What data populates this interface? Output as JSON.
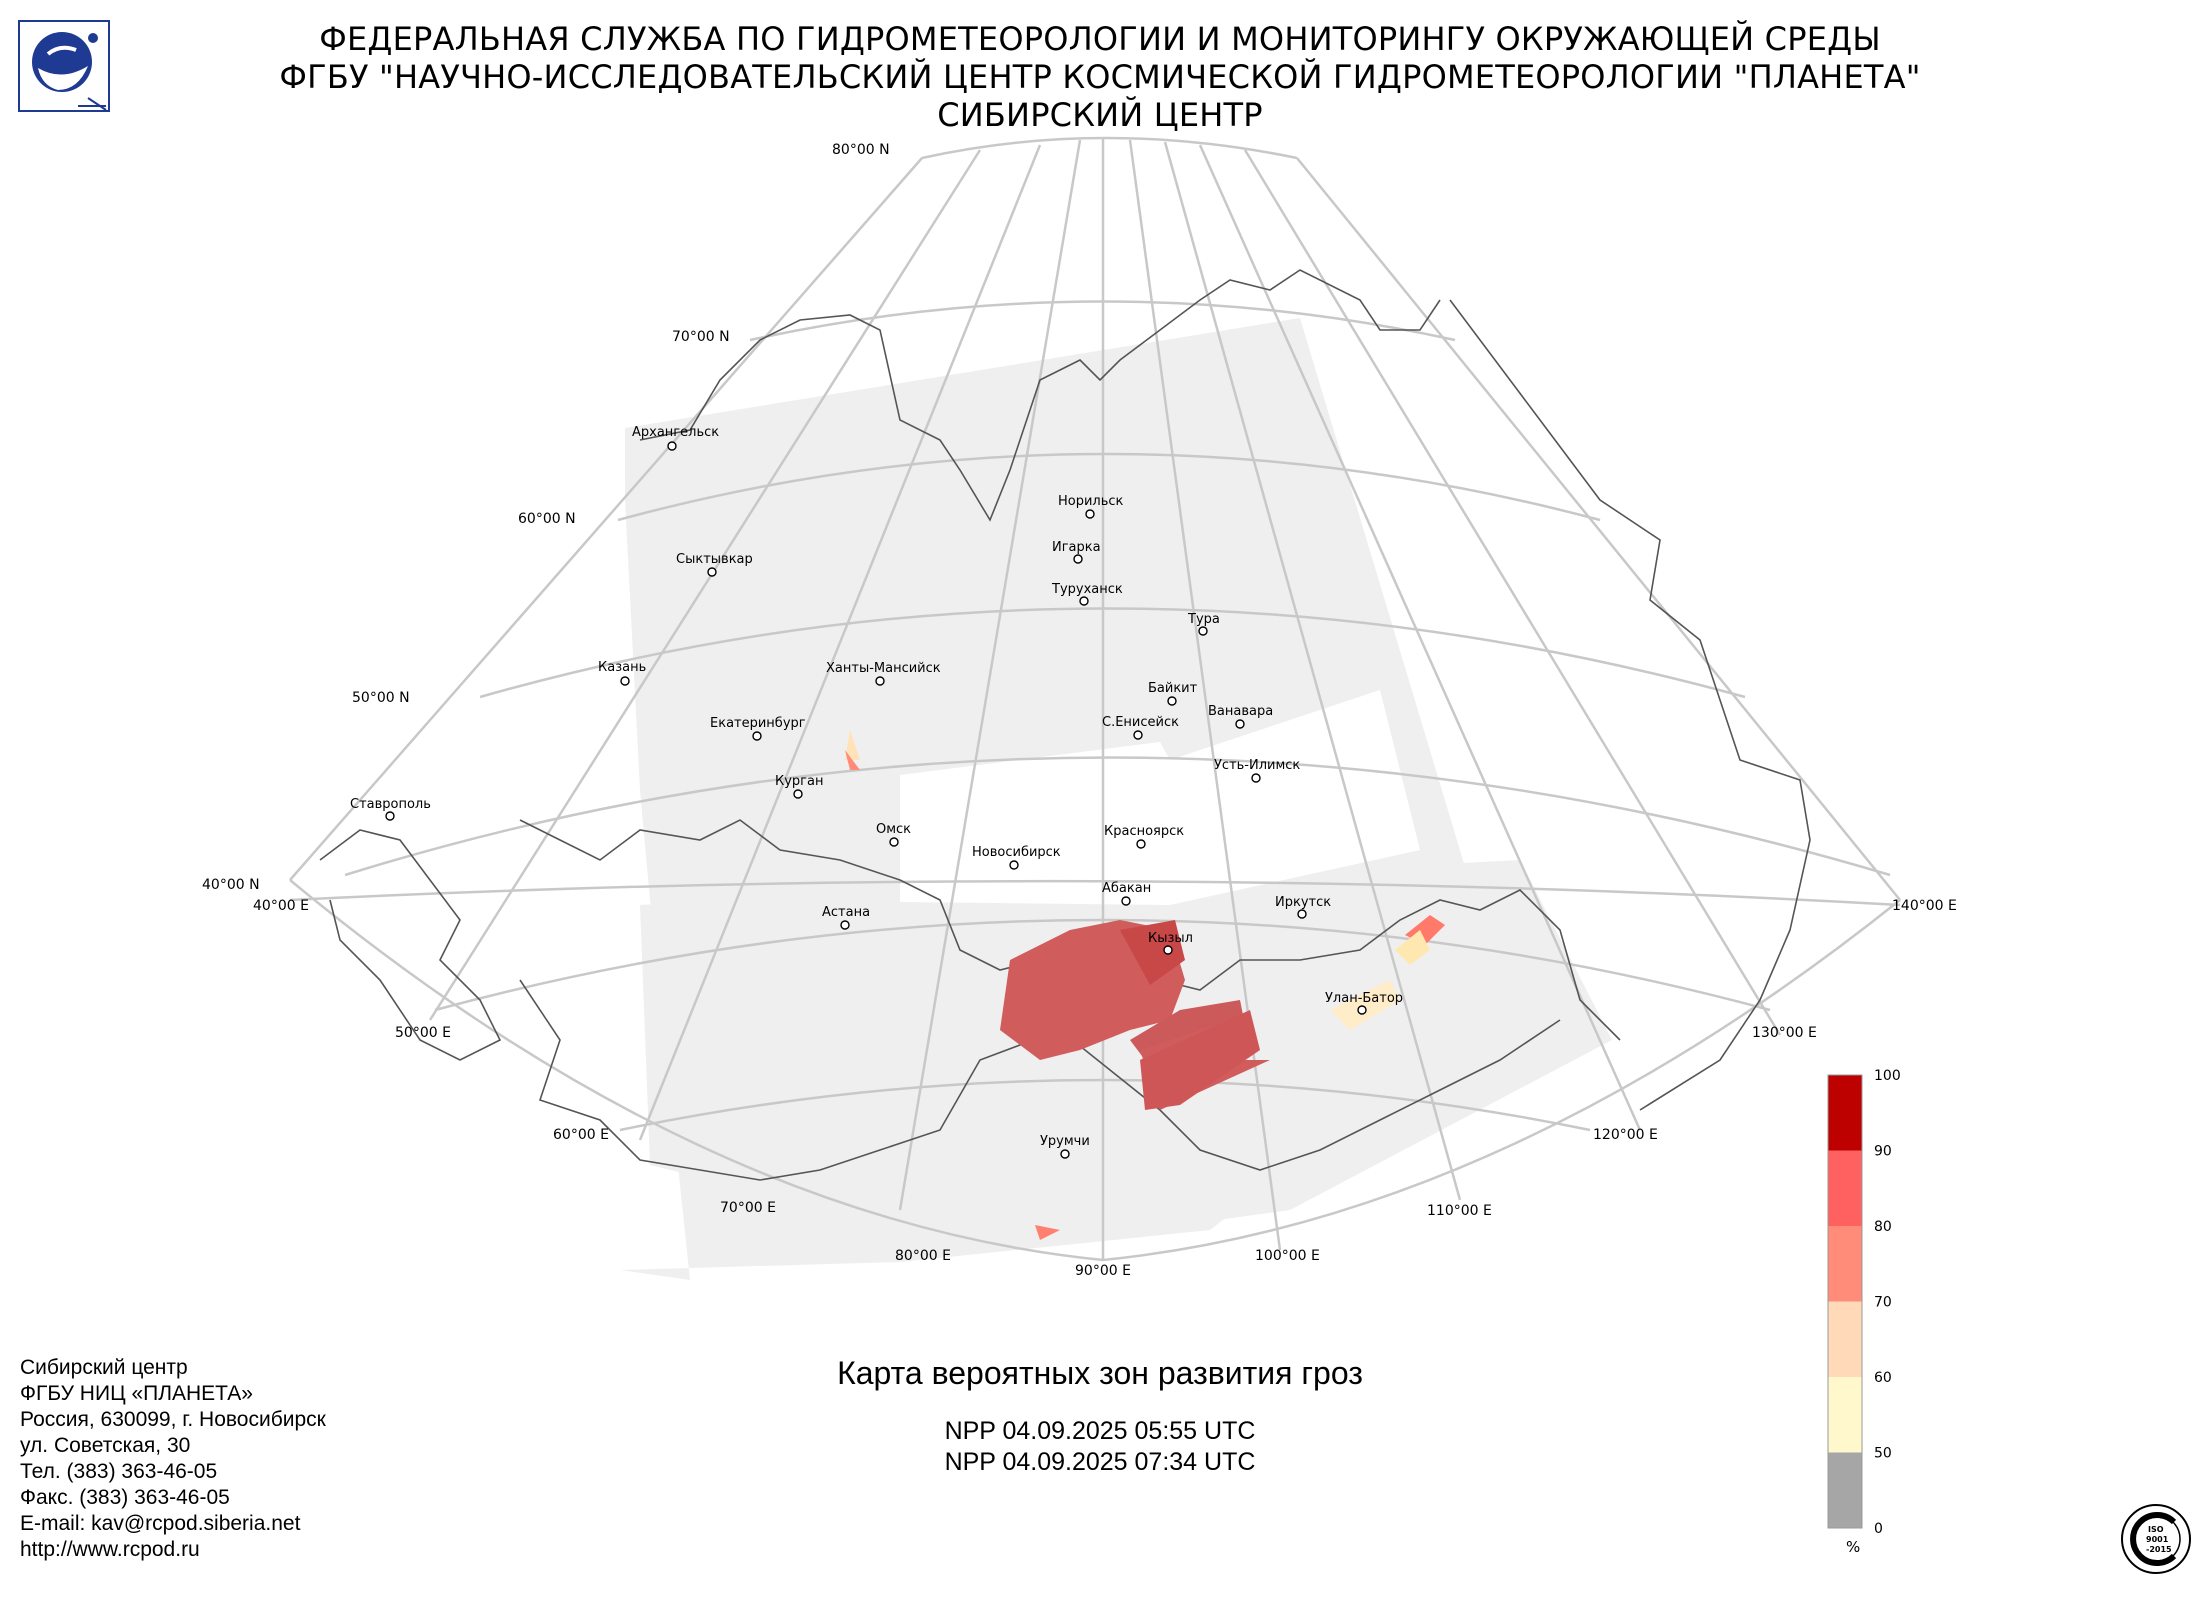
{
  "header": {
    "line1": "ФЕДЕРАЛЬНАЯ СЛУЖБА ПО ГИДРОМЕТЕОРОЛОГИИ И МОНИТОРИНГУ ОКРУЖАЮЩЕЙ СРЕДЫ",
    "line2": "ФГБУ \"НАУЧНО-ИССЛЕДОВАТЕЛЬСКИЙ ЦЕНТР КОСМИЧЕСКОЙ ГИДРОМЕТЕОРОЛОГИИ \"ПЛАНЕТА\"",
    "line3": "СИБИРСКИЙ ЦЕНТР"
  },
  "logo_icon": "planeta-logo-icon",
  "iso_badge": {
    "icon": "iso-certificate-icon",
    "text_top": "ISO",
    "text_mid": "9001",
    "text_bot": "-2015"
  },
  "grid_labels": {
    "lat_80": "80°00 N",
    "lat_70": "70°00 N",
    "lat_60": "60°00 N",
    "lat_50": "50°00 N",
    "lat_40": "40°00 N",
    "lon_40": "40°00 E",
    "lon_50": "50°00 E",
    "lon_60": "60°00 E",
    "lon_70": "70°00 E",
    "lon_80": "80°00 E",
    "lon_90": "90°00 E",
    "lon_100": "100°00 E",
    "lon_110": "110°00 E",
    "lon_120": "120°00 E",
    "lon_130": "130°00 E",
    "lon_140": "140°00 E"
  },
  "cities": {
    "arkhangelsk": "Архангельск",
    "norilsk": "Норильск",
    "igarka": "Игарка",
    "turukhansk": "Туруханск",
    "tura": "Тура",
    "syktyvkar": "Сыктывкар",
    "kazan": "Казань",
    "khanty": "Ханты-Мансийск",
    "baykit": "Байкит",
    "vanavara": "Ванавара",
    "s_eniseysk": "С.Енисейск",
    "ekaterinburg": "Екатеринбург",
    "ust_ilimsk": "Усть-Илимск",
    "kurgan": "Курган",
    "stavropol": "Ставрополь",
    "omsk": "Омск",
    "krasnoyarsk": "Красноярск",
    "novosibirsk": "Новосибирск",
    "abakan": "Абакан",
    "irkutsk": "Иркутск",
    "astana": "Астана",
    "kyzyl": "Кызыл",
    "ulan_bator": "Улан-Батор",
    "urumchi": "Урумчи"
  },
  "legend": {
    "unit": "%",
    "ticks": [
      "100",
      "90",
      "80",
      "70",
      "60",
      "50",
      "0"
    ],
    "bins": [
      {
        "from": 90,
        "to": 100,
        "color": "#bd0000"
      },
      {
        "from": 80,
        "to": 90,
        "color": "#ff6060"
      },
      {
        "from": 70,
        "to": 80,
        "color": "#ff8c78"
      },
      {
        "from": 60,
        "to": 70,
        "color": "#ffd9b8"
      },
      {
        "from": 50,
        "to": 60,
        "color": "#fff8cc"
      },
      {
        "from": 0,
        "to": 50,
        "color": "#a6a6a6"
      }
    ]
  },
  "map": {
    "title": "Карта вероятных зон развития гроз",
    "pass1": "NPP 04.09.2025  05:55 UTC",
    "pass2": "NPP 04.09.2025  07:34 UTC"
  },
  "address": {
    "line1": "Сибирский центр",
    "line2": "ФГБУ НИЦ «ПЛАНЕТА»",
    "line3": "Россия, 630099, г. Новосибирск",
    "line4": "ул. Советская, 30",
    "line5": "Тел. (383) 363-46-05",
    "line6": "Факс. (383) 363-46-05",
    "line7": "E-mail: kav@rcpod.siberia.net",
    "line8": "http://www.rcpod.ru"
  }
}
